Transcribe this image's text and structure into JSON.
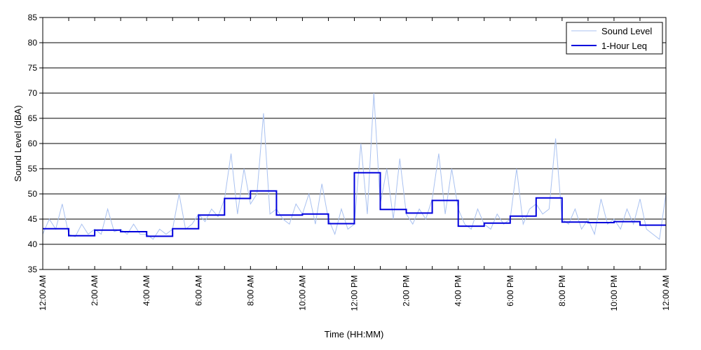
{
  "chart_data": {
    "type": "line",
    "title": "",
    "xlabel": "Time (HH:MM)",
    "ylabel": "Sound Level (dBA)",
    "ylim": [
      35,
      85
    ],
    "y_ticks": [
      35,
      40,
      45,
      50,
      55,
      60,
      65,
      70,
      75,
      80,
      85
    ],
    "xlim_hours": [
      0,
      24
    ],
    "x_tick_hours": [
      0,
      2,
      4,
      6,
      8,
      10,
      12,
      14,
      16,
      18,
      20,
      22,
      24
    ],
    "x_tick_labels": [
      "12:00 AM",
      "2:00 AM",
      "4:00 AM",
      "6:00 AM",
      "8:00 AM",
      "10:00 AM",
      "12:00 PM",
      "2:00 PM",
      "4:00 PM",
      "6:00 PM",
      "8:00 PM",
      "10:00 PM",
      "12:00 AM"
    ],
    "grid": "horizontal",
    "legend_position": "top-right",
    "series": [
      {
        "name": "Sound Level",
        "color": "#a9c1f0",
        "style": "thin-line",
        "x": [
          0,
          0.25,
          0.5,
          0.75,
          1,
          1.25,
          1.5,
          1.75,
          2,
          2.25,
          2.5,
          2.75,
          3,
          3.25,
          3.5,
          3.75,
          4,
          4.25,
          4.5,
          4.75,
          5,
          5.25,
          5.5,
          5.75,
          6,
          6.25,
          6.5,
          6.75,
          7,
          7.25,
          7.5,
          7.75,
          8,
          8.25,
          8.5,
          8.75,
          9,
          9.25,
          9.5,
          9.75,
          10,
          10.25,
          10.5,
          10.75,
          11,
          11.25,
          11.5,
          11.75,
          12,
          12.25,
          12.5,
          12.75,
          13,
          13.25,
          13.5,
          13.75,
          14,
          14.25,
          14.5,
          14.75,
          15,
          15.25,
          15.5,
          15.75,
          16,
          16.25,
          16.5,
          16.75,
          17,
          17.25,
          17.5,
          17.75,
          18,
          18.25,
          18.5,
          18.75,
          19,
          19.25,
          19.5,
          19.75,
          20,
          20.25,
          20.5,
          20.75,
          21,
          21.25,
          21.5,
          21.75,
          22,
          22.25,
          22.5,
          22.75,
          23,
          23.25,
          23.5,
          23.75,
          24
        ],
        "values": [
          42,
          45,
          43,
          48,
          42,
          41.5,
          44,
          42,
          43,
          42,
          47,
          42.5,
          43,
          42,
          44,
          42,
          42,
          41,
          43,
          42,
          43,
          50,
          43,
          44,
          46,
          44.5,
          47,
          45.5,
          49,
          58,
          46,
          55,
          48,
          50,
          66,
          46,
          47,
          45,
          44,
          48,
          46,
          50,
          44,
          52,
          45,
          42,
          47,
          43,
          44,
          60,
          46,
          70,
          48,
          55,
          45,
          57,
          46,
          44,
          47,
          45,
          49,
          58,
          46,
          55,
          47,
          44,
          43,
          47,
          44,
          43,
          46,
          44,
          45,
          55,
          44,
          47,
          48,
          46,
          47,
          61,
          45,
          44,
          47,
          43,
          45,
          42,
          49,
          44,
          45,
          43,
          47,
          44,
          49,
          43,
          42,
          41,
          50
        ]
      },
      {
        "name": "1-Hour Leq",
        "color": "#0000dd",
        "style": "step",
        "x": [
          0,
          1,
          2,
          3,
          4,
          5,
          6,
          7,
          8,
          9,
          10,
          11,
          12,
          13,
          14,
          15,
          16,
          17,
          18,
          19,
          20,
          21,
          22,
          23
        ],
        "values": [
          43.1,
          41.7,
          42.8,
          42.5,
          41.6,
          43.1,
          45.8,
          49.1,
          50.6,
          45.8,
          46.0,
          44.1,
          54.2,
          46.9,
          46.2,
          48.7,
          43.6,
          44.2,
          45.6,
          49.2,
          44.4,
          44.3,
          44.5,
          43.8
        ]
      }
    ]
  }
}
